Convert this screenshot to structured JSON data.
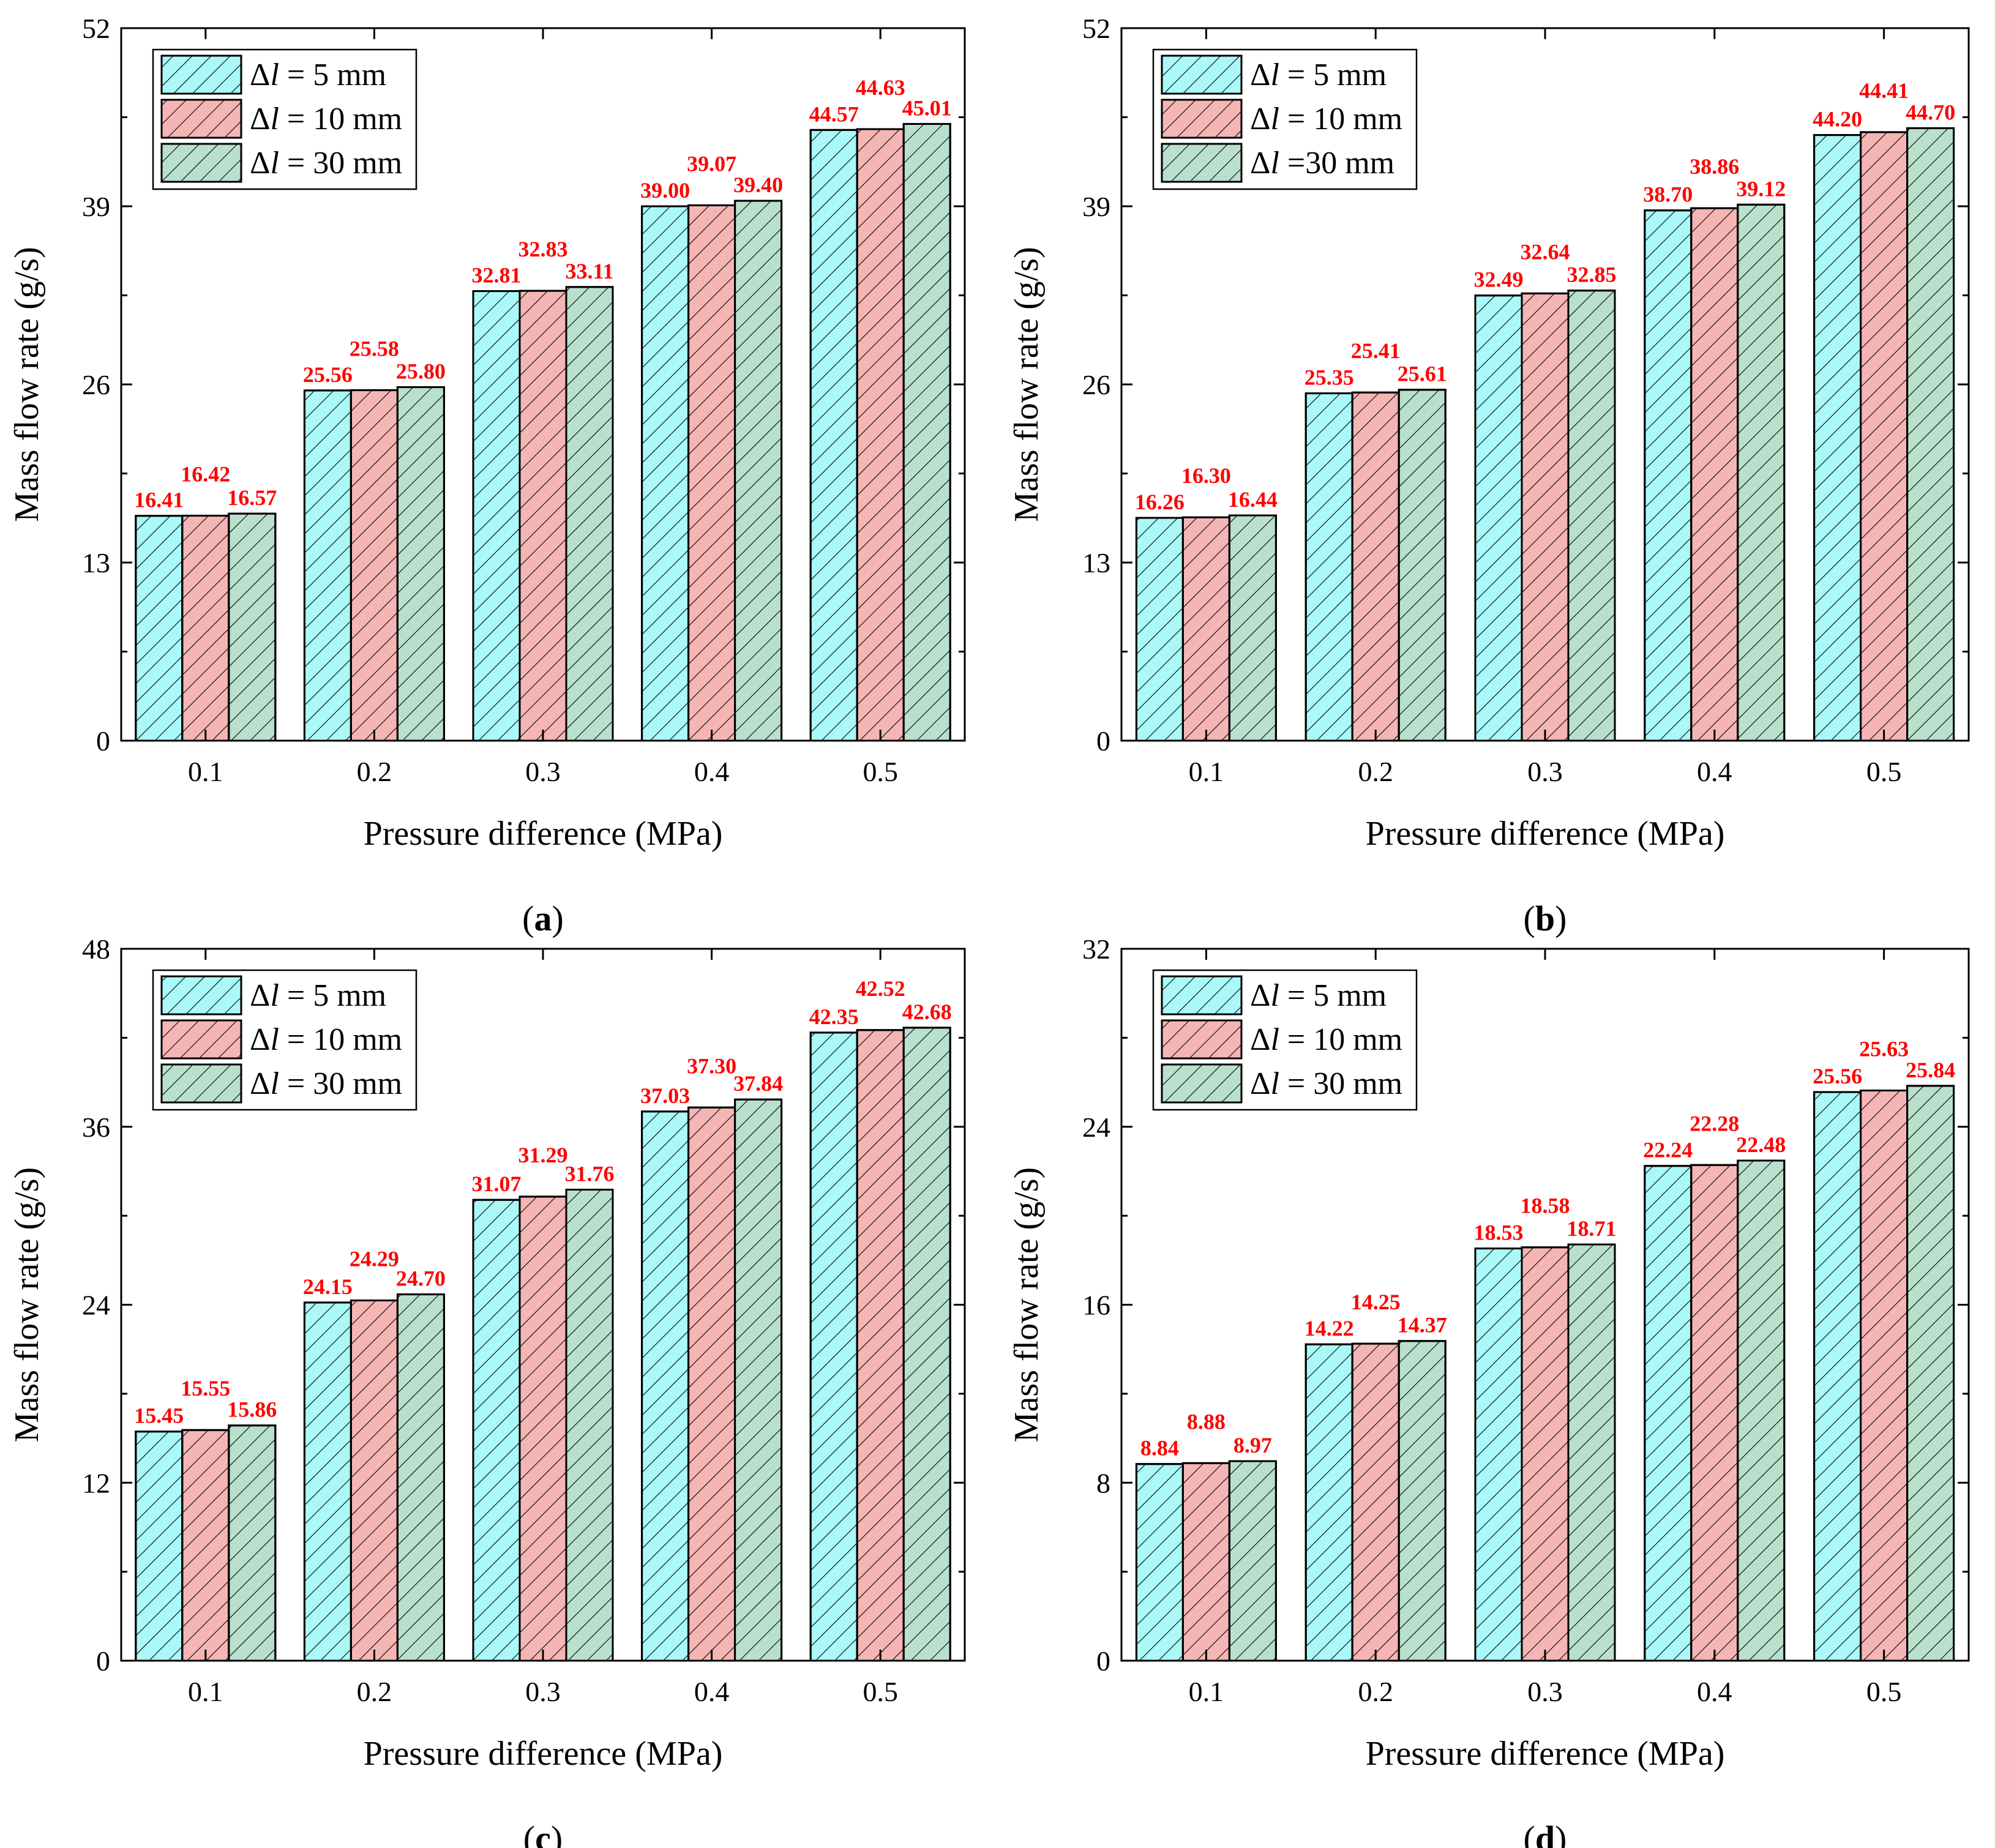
{
  "colors": {
    "series_fills": [
      "#aaf8f8",
      "#f5b5b5",
      "#b9e0cc"
    ],
    "label_color": "#ff0000",
    "axis_color": "#000000"
  },
  "chart_data": [
    {
      "panel_label": "a",
      "type": "bar",
      "xlabel": "Pressure difference (MPa)",
      "ylabel": "Mass flow rate (g/s)",
      "categories": [
        "0.1",
        "0.2",
        "0.3",
        "0.4",
        "0.5"
      ],
      "ylim": [
        0,
        52
      ],
      "yticks": [
        "0",
        "13",
        "26",
        "39",
        "52"
      ],
      "legend_position": "top-left",
      "series": [
        {
          "name_prefix": "Δ",
          "name_var": "l",
          "name_suffix": "  = 5 mm",
          "values": [
            16.41,
            25.56,
            32.81,
            39.0,
            44.57
          ],
          "labels": [
            "16.41",
            "25.56",
            "32.81",
            "39.00",
            "44.57"
          ]
        },
        {
          "name_prefix": "Δ",
          "name_var": "l",
          "name_suffix": " = 10 mm",
          "values": [
            16.42,
            25.58,
            32.83,
            39.07,
            44.63
          ],
          "labels": [
            "16.42",
            "25.58",
            "32.83",
            "39.07",
            "44.63"
          ]
        },
        {
          "name_prefix": "Δ",
          "name_var": "l",
          "name_suffix": " = 30 mm",
          "values": [
            16.57,
            25.8,
            33.11,
            39.4,
            45.01
          ],
          "labels": [
            "16.57",
            "25.80",
            "33.11",
            "39.40",
            "45.01"
          ]
        }
      ]
    },
    {
      "panel_label": "b",
      "type": "bar",
      "xlabel": "Pressure difference (MPa)",
      "ylabel": "Mass flow rate (g/s)",
      "categories": [
        "0.1",
        "0.2",
        "0.3",
        "0.4",
        "0.5"
      ],
      "ylim": [
        0,
        52
      ],
      "yticks": [
        "0",
        "13",
        "26",
        "39",
        "52"
      ],
      "legend_position": "top-left",
      "series": [
        {
          "name_prefix": "Δ",
          "name_var": "l",
          "name_suffix": " = 5 mm",
          "values": [
            16.26,
            25.35,
            32.49,
            38.7,
            44.2
          ],
          "labels": [
            "16.26",
            "25.35",
            "32.49",
            "38.70",
            "44.20"
          ]
        },
        {
          "name_prefix": "Δ",
          "name_var": "l",
          "name_suffix": " = 10 mm",
          "values": [
            16.3,
            25.41,
            32.64,
            38.86,
            44.41
          ],
          "labels": [
            "16.30",
            "25.41",
            "32.64",
            "38.86",
            "44.41"
          ]
        },
        {
          "name_prefix": "Δ",
          "name_var": "l",
          "name_suffix": " =30 mm",
          "values": [
            16.44,
            25.61,
            32.85,
            39.12,
            44.7
          ],
          "labels": [
            "16.44",
            "25.61",
            "32.85",
            "39.12",
            "44.70"
          ]
        }
      ]
    },
    {
      "panel_label": "c",
      "type": "bar",
      "xlabel": "Pressure difference (MPa)",
      "ylabel": "Mass flow rate (g/s)",
      "categories": [
        "0.1",
        "0.2",
        "0.3",
        "0.4",
        "0.5"
      ],
      "ylim": [
        0,
        48
      ],
      "yticks": [
        "0",
        "12",
        "24",
        "36",
        "48"
      ],
      "legend_position": "top-left",
      "series": [
        {
          "name_prefix": "Δ",
          "name_var": "l",
          "name_suffix": " = 5 mm",
          "values": [
            15.45,
            24.15,
            31.07,
            37.03,
            42.35
          ],
          "labels": [
            "15.45",
            "24.15",
            "31.07",
            "37.03",
            "42.35"
          ]
        },
        {
          "name_prefix": "Δ",
          "name_var": "l",
          "name_suffix": " = 10 mm",
          "values": [
            15.55,
            24.29,
            31.29,
            37.3,
            42.52
          ],
          "labels": [
            "15.55",
            "24.29",
            "31.29",
            "37.30",
            "42.52"
          ]
        },
        {
          "name_prefix": "Δ",
          "name_var": "l",
          "name_suffix": " = 30 mm",
          "values": [
            15.86,
            24.7,
            31.76,
            37.84,
            42.68
          ],
          "labels": [
            "15.86",
            "24.70",
            "31.76",
            "37.84",
            "42.68"
          ]
        }
      ]
    },
    {
      "panel_label": "d",
      "type": "bar",
      "xlabel": "Pressure difference (MPa)",
      "ylabel": "Mass flow rate (g/s)",
      "categories": [
        "0.1",
        "0.2",
        "0.3",
        "0.4",
        "0.5"
      ],
      "ylim": [
        0,
        32
      ],
      "yticks": [
        "0",
        "8",
        "16",
        "24",
        "32"
      ],
      "legend_position": "top-left",
      "series": [
        {
          "name_prefix": "Δ",
          "name_var": "l",
          "name_suffix": " = 5 mm",
          "values": [
            8.84,
            14.22,
            18.53,
            22.24,
            25.56
          ],
          "labels": [
            "8.84",
            "14.22",
            "18.53",
            "22.24",
            "25.56"
          ]
        },
        {
          "name_prefix": "Δ",
          "name_var": "l",
          "name_suffix": " = 10 mm",
          "values": [
            8.88,
            14.25,
            18.58,
            22.28,
            25.63
          ],
          "labels": [
            "8.88",
            "14.25",
            "18.58",
            "22.28",
            "25.63"
          ]
        },
        {
          "name_prefix": "Δ",
          "name_var": "l",
          "name_suffix": " = 30 mm",
          "values": [
            8.97,
            14.37,
            18.71,
            22.48,
            25.84
          ],
          "labels": [
            "8.97",
            "14.37",
            "18.71",
            "22.48",
            "25.84"
          ]
        }
      ]
    }
  ]
}
